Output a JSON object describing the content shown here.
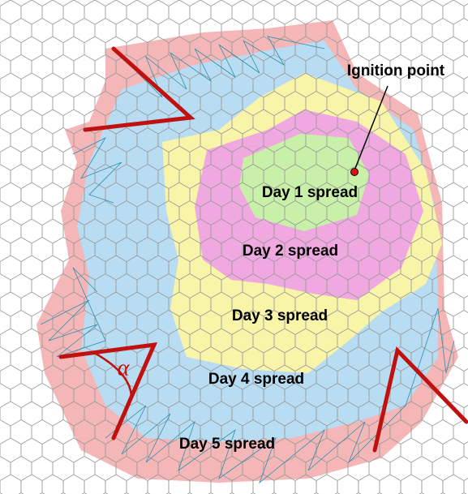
{
  "ignition_label": "Ignition point",
  "spread_labels": [
    "Day 1 spread",
    "Day 2 spread",
    "Day 3 spread",
    "Day 4 spread",
    "Day 5 spread"
  ],
  "angle_label": "α"
}
